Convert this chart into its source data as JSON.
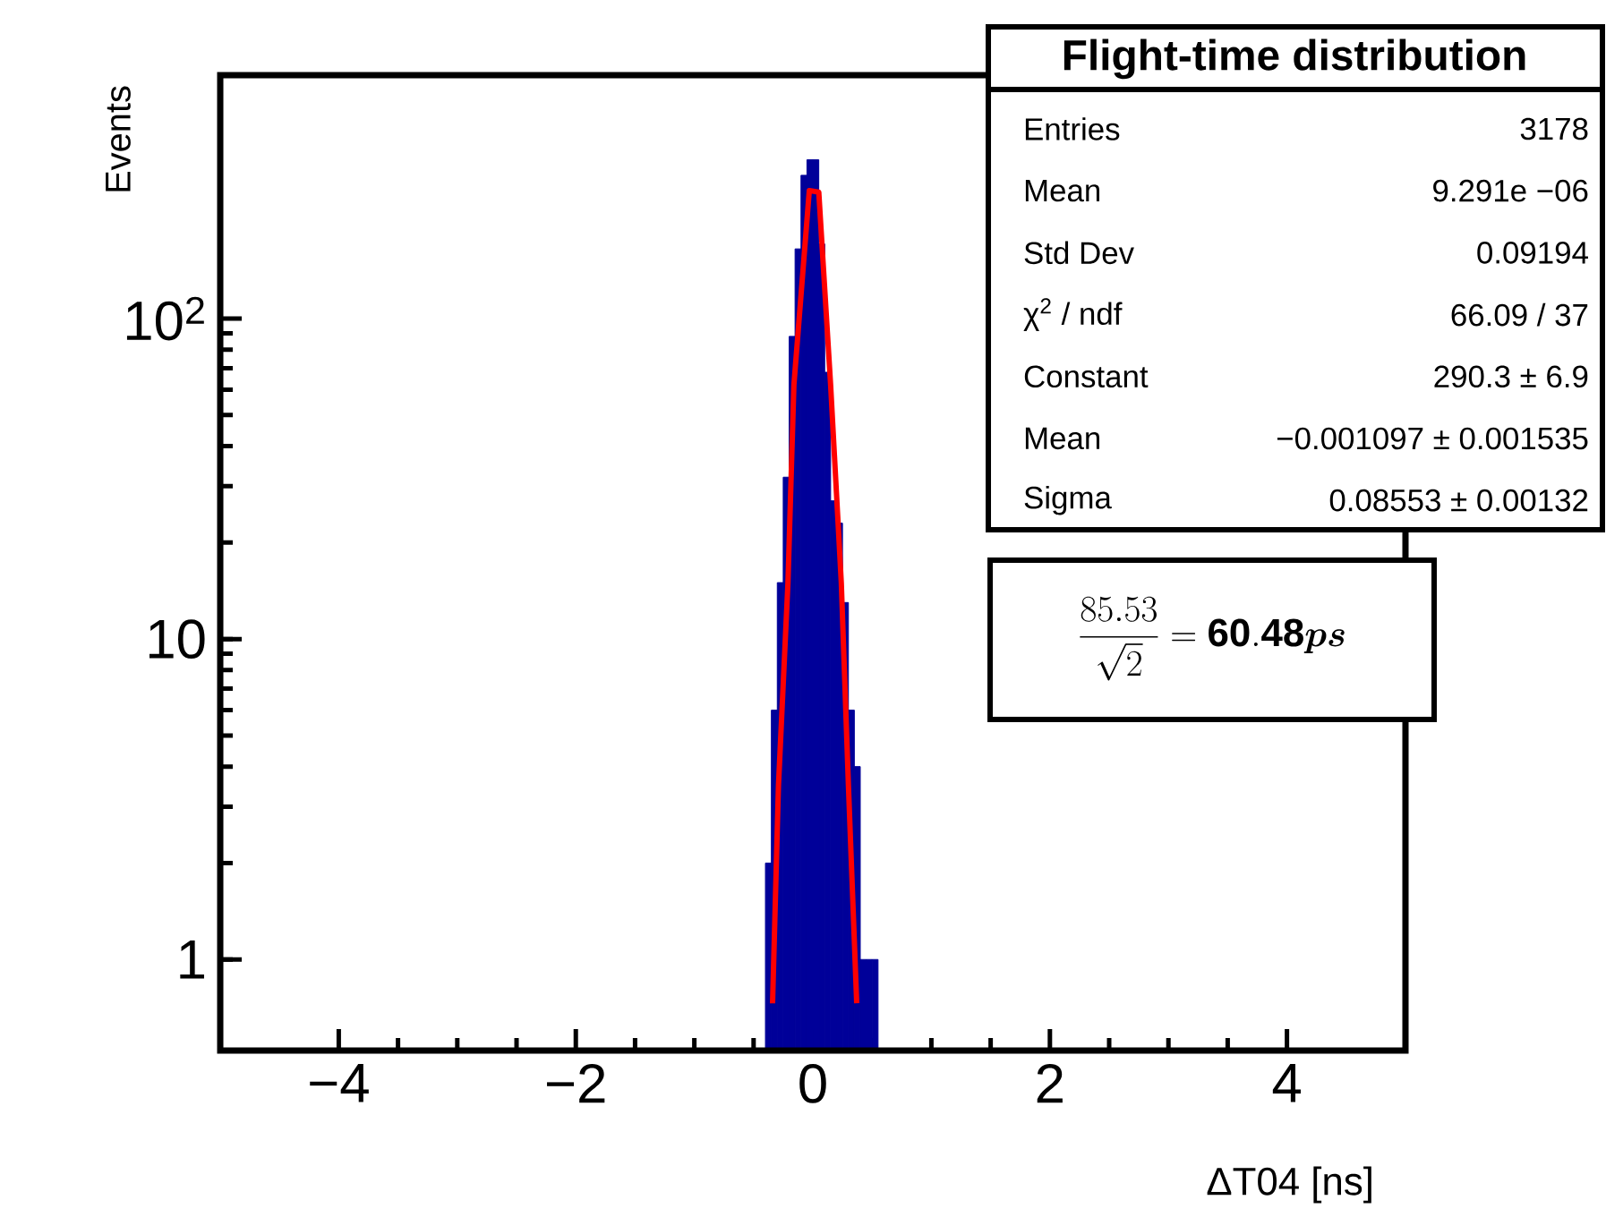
{
  "chart_data": {
    "type": "histogram",
    "title": "Flight-time distribution",
    "xlabel": "ΔT04 [ns]",
    "ylabel": "Events",
    "bins": [
      -0.4,
      -0.35,
      -0.3,
      -0.25,
      -0.2,
      -0.15,
      -0.1,
      -0.05,
      0,
      0.05,
      0.1,
      0.15,
      0.2,
      0.25,
      0.3,
      0.35,
      0.4,
      0.45,
      0.5,
      0.55
    ],
    "values": [
      2,
      6,
      15,
      32,
      88,
      165,
      280,
      313,
      313,
      171,
      68,
      27,
      23,
      13,
      6,
      4,
      1,
      1,
      1
    ],
    "color": "#000099",
    "series": [
      {
        "type": "line",
        "color": "#ff0000",
        "x": [
          -0.34,
          -0.29,
          -0.21,
          -0.16,
          -0.03,
          0.05,
          0.15,
          0.24,
          0.3,
          0.37
        ],
        "values": [
          0.73,
          3.5,
          15,
          62,
          251,
          248,
          62,
          15,
          3.5,
          0.73
        ]
      }
    ],
    "log": "y",
    "xlim": [
      -5,
      5
    ],
    "ylim": [
      0.52,
      575
    ],
    "xticks": [
      {
        "value": -4,
        "label": "−4"
      },
      {
        "value": -2,
        "label": "−2"
      },
      0,
      2,
      4
    ],
    "yticks": [
      1,
      10,
      {
        "value": 100,
        "label": "10$^{2}$"
      }
    ],
    "annotations": [
      "Entries",
      "3178",
      "Mean",
      "9.291e −06",
      "Std Dev",
      "0.09194",
      "χ$^{2}$  / ndf",
      "66.09 / 37",
      "Constant",
      "290.3 ± 6.9",
      "Mean",
      "−0.001097  ± 0.001535",
      "Sigma",
      "0.08553 ± 0.00132",
      "\\frac{85.53}{\\sqrt{2}}=\\mathbf{60.48}\\bm{ps}"
    ]
  }
}
